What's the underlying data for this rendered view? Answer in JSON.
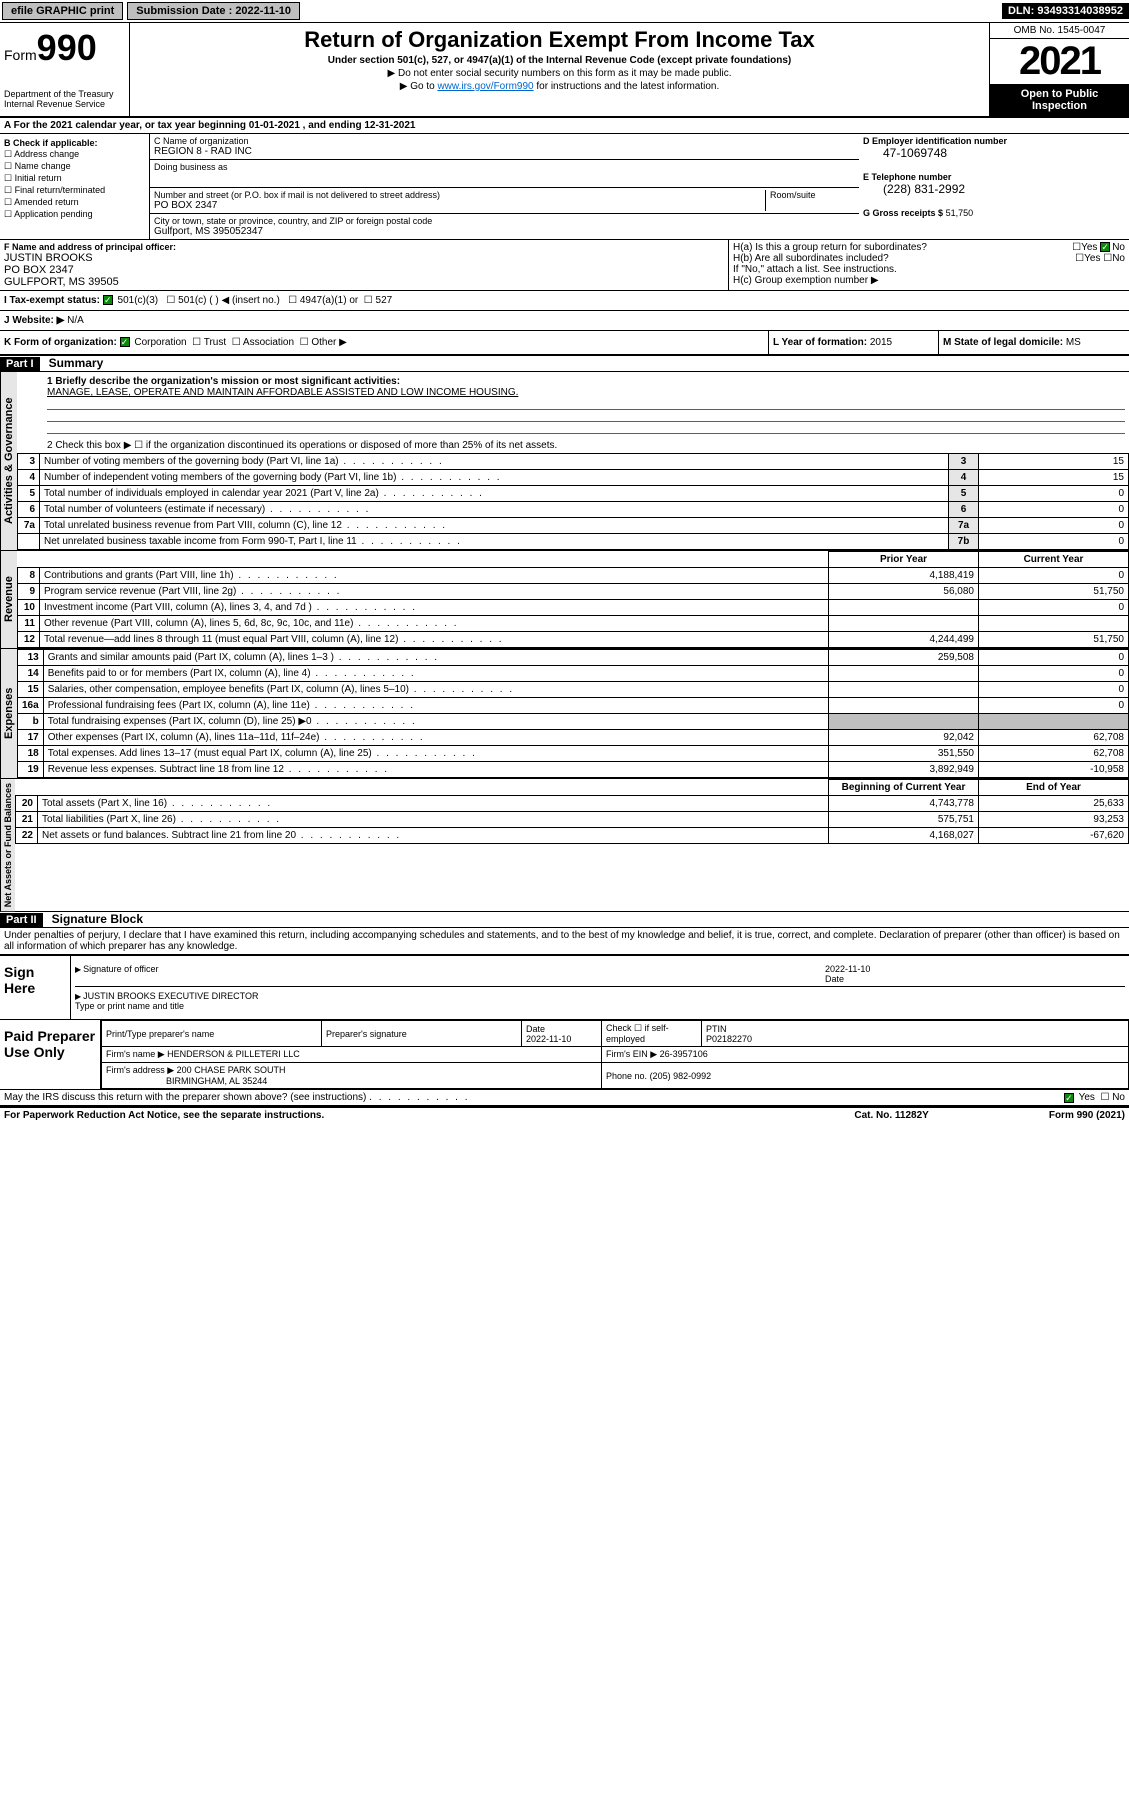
{
  "topbar": {
    "efile": "efile GRAPHIC print",
    "submission_label": "Submission Date : 2022-11-10",
    "dln": "DLN: 93493314038952"
  },
  "header": {
    "form_prefix": "Form",
    "form_number": "990",
    "dept": "Department of the Treasury Internal Revenue Service",
    "title": "Return of Organization Exempt From Income Tax",
    "subtitle": "Under section 501(c), 527, or 4947(a)(1) of the Internal Revenue Code (except private foundations)",
    "note1": "▶ Do not enter social security numbers on this form as it may be made public.",
    "note2_pre": "▶ Go to ",
    "note2_link": "www.irs.gov/Form990",
    "note2_post": " for instructions and the latest information.",
    "omb": "OMB No. 1545-0047",
    "year": "2021",
    "open": "Open to Public Inspection"
  },
  "period": "For the 2021 calendar year, or tax year beginning 01-01-2021   , and ending 12-31-2021",
  "boxB": {
    "label": "B Check if applicable:",
    "items": [
      "Address change",
      "Name change",
      "Initial return",
      "Final return/terminated",
      "Amended return",
      "Application pending"
    ]
  },
  "boxC": {
    "name_label": "C Name of organization",
    "name": "REGION 8 - RAD INC",
    "dba_label": "Doing business as",
    "dba": "",
    "addr_label": "Number and street (or P.O. box if mail is not delivered to street address)",
    "room_label": "Room/suite",
    "addr": "PO BOX 2347",
    "city_label": "City or town, state or province, country, and ZIP or foreign postal code",
    "city": "Gulfport, MS  395052347"
  },
  "boxD": {
    "label": "D Employer identification number",
    "value": "47-1069748"
  },
  "boxE": {
    "label": "E Telephone number",
    "value": "(228) 831-2992"
  },
  "boxG": {
    "label": "G Gross receipts $",
    "value": "51,750"
  },
  "boxF": {
    "label": "F  Name and address of principal officer:",
    "name": "JUSTIN BROOKS",
    "addr1": "PO BOX 2347",
    "addr2": "GULFPORT, MS  39505"
  },
  "boxH": {
    "a": "H(a)  Is this a group return for subordinates?",
    "a_yes": "Yes",
    "a_no": "No",
    "b": "H(b)  Are all subordinates included?",
    "b_yes": "Yes",
    "b_no": "No",
    "b_note": "If \"No,\" attach a list. See instructions.",
    "c": "H(c)  Group exemption number ▶"
  },
  "boxI": {
    "label": "I  Tax-exempt status:",
    "opts": [
      "501(c)(3)",
      "501(c) (  ) ◀ (insert no.)",
      "4947(a)(1) or",
      "527"
    ]
  },
  "boxJ": {
    "label": "J  Website: ▶",
    "value": "N/A"
  },
  "boxK": {
    "label": "K Form of organization:",
    "opts": [
      "Corporation",
      "Trust",
      "Association",
      "Other ▶"
    ]
  },
  "boxL": {
    "label": "L Year of formation:",
    "value": "2015"
  },
  "boxM": {
    "label": "M State of legal domicile:",
    "value": "MS"
  },
  "part1": {
    "hdr": "Part I",
    "title": "Summary"
  },
  "summary": {
    "line1_label": "1  Briefly describe the organization's mission or most significant activities:",
    "line1_value": "MANAGE, LEASE, OPERATE AND MAINTAIN AFFORDABLE ASSISTED AND LOW INCOME HOUSING.",
    "line2": "2  Check this box ▶ ☐  if the organization discontinued its operations or disposed of more than 25% of its net assets.",
    "rows_ag": [
      {
        "n": "3",
        "desc": "Number of voting members of the governing body (Part VI, line 1a)",
        "box": "3",
        "v": "15"
      },
      {
        "n": "4",
        "desc": "Number of independent voting members of the governing body (Part VI, line 1b)",
        "box": "4",
        "v": "15"
      },
      {
        "n": "5",
        "desc": "Total number of individuals employed in calendar year 2021 (Part V, line 2a)",
        "box": "5",
        "v": "0"
      },
      {
        "n": "6",
        "desc": "Total number of volunteers (estimate if necessary)",
        "box": "6",
        "v": "0"
      },
      {
        "n": "7a",
        "desc": "Total unrelated business revenue from Part VIII, column (C), line 12",
        "box": "7a",
        "v": "0"
      },
      {
        "n": "",
        "desc": "Net unrelated business taxable income from Form 990-T, Part I, line 11",
        "box": "7b",
        "v": "0"
      }
    ],
    "col_prior": "Prior Year",
    "col_current": "Current Year",
    "rows_rev": [
      {
        "n": "8",
        "desc": "Contributions and grants (Part VIII, line 1h)",
        "p": "4,188,419",
        "c": "0"
      },
      {
        "n": "9",
        "desc": "Program service revenue (Part VIII, line 2g)",
        "p": "56,080",
        "c": "51,750"
      },
      {
        "n": "10",
        "desc": "Investment income (Part VIII, column (A), lines 3, 4, and 7d )",
        "p": "",
        "c": "0"
      },
      {
        "n": "11",
        "desc": "Other revenue (Part VIII, column (A), lines 5, 6d, 8c, 9c, 10c, and 11e)",
        "p": "",
        "c": ""
      },
      {
        "n": "12",
        "desc": "Total revenue—add lines 8 through 11 (must equal Part VIII, column (A), line 12)",
        "p": "4,244,499",
        "c": "51,750"
      }
    ],
    "rows_exp": [
      {
        "n": "13",
        "desc": "Grants and similar amounts paid (Part IX, column (A), lines 1–3 )",
        "p": "259,508",
        "c": "0"
      },
      {
        "n": "14",
        "desc": "Benefits paid to or for members (Part IX, column (A), line 4)",
        "p": "",
        "c": "0"
      },
      {
        "n": "15",
        "desc": "Salaries, other compensation, employee benefits (Part IX, column (A), lines 5–10)",
        "p": "",
        "c": "0"
      },
      {
        "n": "16a",
        "desc": "Professional fundraising fees (Part IX, column (A), line 11e)",
        "p": "",
        "c": "0"
      },
      {
        "n": "b",
        "desc": "Total fundraising expenses (Part IX, column (D), line 25) ▶0",
        "p": "shade",
        "c": "shade"
      },
      {
        "n": "17",
        "desc": "Other expenses (Part IX, column (A), lines 11a–11d, 11f–24e)",
        "p": "92,042",
        "c": "62,708"
      },
      {
        "n": "18",
        "desc": "Total expenses. Add lines 13–17 (must equal Part IX, column (A), line 25)",
        "p": "351,550",
        "c": "62,708"
      },
      {
        "n": "19",
        "desc": "Revenue less expenses. Subtract line 18 from line 12",
        "p": "3,892,949",
        "c": "-10,958"
      }
    ],
    "col_beg": "Beginning of Current Year",
    "col_end": "End of Year",
    "rows_net": [
      {
        "n": "20",
        "desc": "Total assets (Part X, line 16)",
        "p": "4,743,778",
        "c": "25,633"
      },
      {
        "n": "21",
        "desc": "Total liabilities (Part X, line 26)",
        "p": "575,751",
        "c": "93,253"
      },
      {
        "n": "22",
        "desc": "Net assets or fund balances. Subtract line 21 from line 20",
        "p": "4,168,027",
        "c": "-67,620"
      }
    ]
  },
  "part2": {
    "hdr": "Part II",
    "title": "Signature Block"
  },
  "penalties": "Under penalties of perjury, I declare that I have examined this return, including accompanying schedules and statements, and to the best of my knowledge and belief, it is true, correct, and complete. Declaration of preparer (other than officer) is based on all information of which preparer has any knowledge.",
  "sign": {
    "label": "Sign Here",
    "sig_officer": "Signature of officer",
    "date": "Date",
    "date_val": "2022-11-10",
    "name": "JUSTIN BROOKS  EXECUTIVE DIRECTOR",
    "name_label": "Type or print name and title"
  },
  "preparer": {
    "label": "Paid Preparer Use Only",
    "col1": "Print/Type preparer's name",
    "col2": "Preparer's signature",
    "col3": "Date",
    "date_val": "2022-11-10",
    "col4": "Check ☐ if self-employed",
    "col5": "PTIN",
    "ptin": "P02182270",
    "firm_name_lbl": "Firm's name    ▶",
    "firm_name": "HENDERSON & PILLETERI LLC",
    "firm_ein_lbl": "Firm's EIN ▶",
    "firm_ein": "26-3957106",
    "firm_addr_lbl": "Firm's address ▶",
    "firm_addr1": "200 CHASE PARK SOUTH",
    "firm_addr2": "BIRMINGHAM, AL  35244",
    "phone_lbl": "Phone no.",
    "phone": "(205) 982-0992"
  },
  "discuss": "May the IRS discuss this return with the preparer shown above? (see instructions)",
  "discuss_yes": "Yes",
  "discuss_no": "No",
  "footer": {
    "left": "For Paperwork Reduction Act Notice, see the separate instructions.",
    "mid": "Cat. No. 11282Y",
    "right": "Form 990 (2021)"
  },
  "vtabs": {
    "ag": "Activities & Governance",
    "rev": "Revenue",
    "exp": "Expenses",
    "net": "Net Assets or Fund Balances"
  },
  "colors": {
    "header_bg": "#000000",
    "link": "#0066cc",
    "shade": "#bfbfbf",
    "check": "#0a8a0a"
  }
}
